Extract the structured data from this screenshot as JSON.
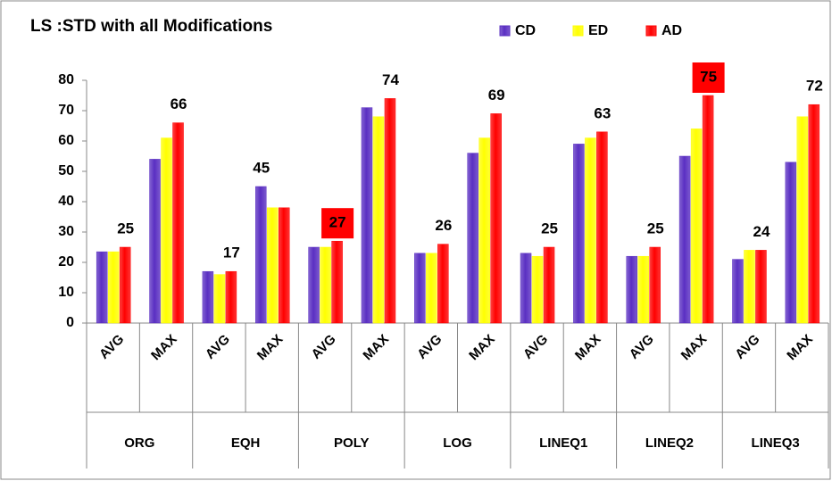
{
  "chart_data": {
    "type": "bar",
    "title": "LS :STD with all Modifications",
    "categories": [
      "AVG",
      "MAX",
      "AVG",
      "MAX",
      "AVG",
      "MAX",
      "AVG",
      "MAX",
      "AVG",
      "MAX",
      "AVG",
      "MAX",
      "AVG",
      "MAX"
    ],
    "groups": [
      "ORG",
      "EQH",
      "POLY",
      "LOG",
      "LINEQ1",
      "LINEQ2",
      "LINEQ3"
    ],
    "series": [
      {
        "name": "CD",
        "color": "#5a2fc2",
        "values": [
          23.5,
          54,
          17,
          45,
          25,
          71,
          23,
          56,
          23,
          59,
          22,
          55,
          21,
          53
        ],
        "value_labels": [
          null,
          null,
          null,
          "45",
          null,
          null,
          null,
          null,
          null,
          null,
          null,
          null,
          null,
          null
        ],
        "label_backgrounds": [
          null,
          null,
          null,
          null,
          null,
          null,
          null,
          null,
          null,
          null,
          null,
          null,
          null,
          null
        ]
      },
      {
        "name": "ED",
        "color": "#ffff00",
        "values": [
          23.5,
          61,
          16,
          38,
          25,
          68,
          23,
          61,
          22,
          61,
          22,
          64,
          24,
          68
        ],
        "value_labels": [
          null,
          null,
          null,
          null,
          null,
          null,
          null,
          null,
          null,
          null,
          null,
          null,
          null,
          null
        ],
        "label_backgrounds": [
          null,
          null,
          null,
          null,
          null,
          null,
          null,
          null,
          null,
          null,
          null,
          null,
          null,
          null
        ]
      },
      {
        "name": "AD",
        "color": "#ff0000",
        "values": [
          25,
          66,
          17,
          38,
          27,
          74,
          26,
          69,
          25,
          63,
          25,
          75,
          24,
          72
        ],
        "value_labels": [
          "25",
          "66",
          "17",
          null,
          "27",
          "74",
          "26",
          "69",
          "25",
          "63",
          "25",
          "75",
          "24",
          "72"
        ],
        "label_backgrounds": [
          null,
          null,
          null,
          null,
          "#ff0000",
          null,
          null,
          null,
          null,
          null,
          null,
          "#ff0000",
          null,
          null
        ]
      }
    ],
    "ylim": [
      0,
      80
    ],
    "yticks": [
      0,
      10,
      20,
      30,
      40,
      50,
      60,
      70,
      80
    ],
    "legend": "top-right",
    "grid": false
  }
}
